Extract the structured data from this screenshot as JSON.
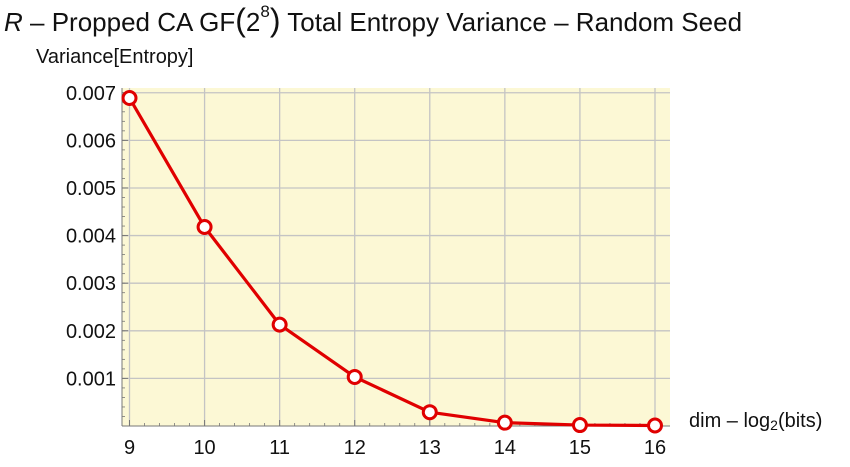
{
  "chart_data": {
    "type": "line",
    "title": {
      "italic_prefix": "R",
      "before_power": " – Propped CA GF",
      "open_paren": "(",
      "base": "2",
      "exponent": "8",
      "close_paren": ")",
      "after_power": " Total Entropy Variance – Random Seed"
    },
    "ylabel": "Variance[Entropy]",
    "xlabel": {
      "prefix": "dim – log",
      "subscript": "2",
      "suffix": "(bits)"
    },
    "x": [
      9,
      10,
      11,
      12,
      13,
      14,
      15,
      16
    ],
    "series": [
      {
        "values": [
          0.00689,
          0.00418,
          0.00213,
          0.00103,
          0.00029,
          7e-05,
          2e-05,
          1e-05
        ]
      }
    ],
    "xlim": [
      8.9,
      16.2
    ],
    "ylim": [
      0,
      0.0071
    ],
    "xticks": [
      "9",
      "10",
      "11",
      "12",
      "13",
      "14",
      "15",
      "16"
    ],
    "yticks": [
      {
        "value": 0.001,
        "label": "0.001"
      },
      {
        "value": 0.002,
        "label": "0.002"
      },
      {
        "value": 0.003,
        "label": "0.003"
      },
      {
        "value": 0.004,
        "label": "0.004"
      },
      {
        "value": 0.005,
        "label": "0.005"
      },
      {
        "value": 0.006,
        "label": "0.006"
      },
      {
        "value": 0.007,
        "label": "0.007"
      }
    ],
    "grid": true,
    "legend": "none",
    "colors": {
      "background": "#fcf8d5",
      "grid": "#c4c4c4",
      "line": "#e00000",
      "marker_fill": "#ffffff",
      "axis": "#777777"
    }
  }
}
